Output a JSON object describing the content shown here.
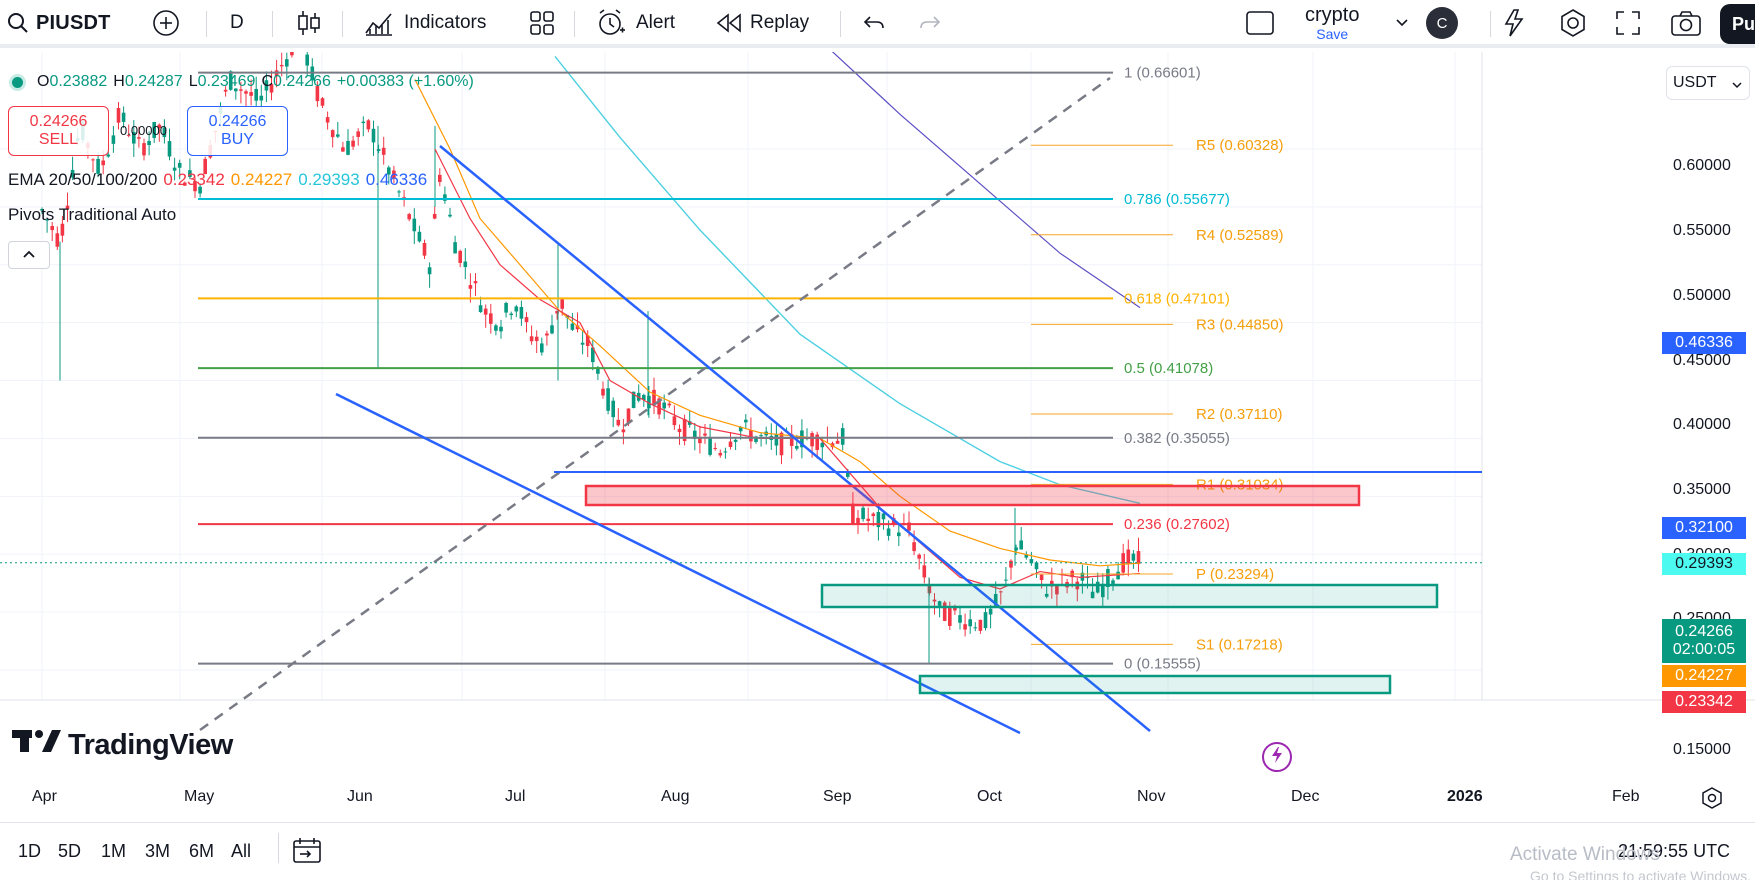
{
  "toolbar": {
    "symbol": "PIUSDT",
    "interval": "D",
    "indicators_label": "Indicators",
    "alert_label": "Alert",
    "replay_label": "Replay",
    "layout_name": "crypto",
    "save_label": "Save",
    "avatar_letter": "C",
    "publish_label": "Pu"
  },
  "legend": {
    "o_label": "O",
    "o_value": "0.23882",
    "h_label": "H",
    "h_value": "0.24287",
    "l_label": "L",
    "l_value": "0.23469",
    "c_label": "C",
    "c_value": "0.24266",
    "change": "+0.00383 (+1.60%)",
    "sell_price": "0.24266",
    "sell_label": "SELL",
    "buy_price": "0.24266",
    "buy_label": "BUY",
    "spread": "0.00000",
    "ema_label": "EMA 20/50/100/200",
    "ema20": "0.23342",
    "ema50": "0.24227",
    "ema100": "0.29393",
    "ema200": "0.46336",
    "pivots_label": "Pivots Traditional Auto"
  },
  "colors": {
    "up": "#089981",
    "down": "#f23645",
    "ema20": "#f23645",
    "ema50": "#ff9800",
    "ema100": "#4dd0e1",
    "ema200": "#5b4fc4",
    "accent": "#2962ff"
  },
  "price_axis": {
    "currency": "USDT",
    "ticks": [
      "0.60000",
      "0.55000",
      "0.50000",
      "0.45000",
      "0.40000",
      "0.35000",
      "0.30000",
      "0.25000",
      "0.15000"
    ],
    "tags": {
      "ema200": "0.46336",
      "line": "0.32100",
      "ema100": "0.29393",
      "last": "0.24266",
      "countdown": "02:00:05",
      "ema50": "0.24227",
      "ema20": "0.23342"
    }
  },
  "fib": [
    {
      "label": "1 (0.66601)",
      "price": 0.66601
    },
    {
      "label": "0.786 (0.55677)",
      "price": 0.55677
    },
    {
      "label": "0.618 (0.47101)",
      "price": 0.47101
    },
    {
      "label": "0.5 (0.41078)",
      "price": 0.41078
    },
    {
      "label": "0.382 (0.35055)",
      "price": 0.35055
    },
    {
      "label": "0.236 (0.27602)",
      "price": 0.27602
    },
    {
      "label": "0 (0.15555)",
      "price": 0.15555
    }
  ],
  "pivots": [
    {
      "label": "R5 (0.60328)",
      "price": 0.60328
    },
    {
      "label": "R4 (0.52589)",
      "price": 0.52589
    },
    {
      "label": "R3 (0.44850)",
      "price": 0.4485
    },
    {
      "label": "R2 (0.37110)",
      "price": 0.3711
    },
    {
      "label": "R1 (0.31034)",
      "price": 0.31034
    },
    {
      "label": "P (0.23294)",
      "price": 0.23294
    },
    {
      "label": "S1 (0.17218)",
      "price": 0.17218
    }
  ],
  "time_axis": [
    "Apr",
    "May",
    "Jun",
    "Jul",
    "Aug",
    "Sep",
    "Oct",
    "Nov",
    "Dec",
    "2026",
    "Feb"
  ],
  "bottom": {
    "ranges": [
      "1D",
      "5D",
      "1M",
      "3M",
      "6M",
      "All"
    ],
    "clock": "21:59:55 UTC",
    "watermark_line1": "Activate Windows",
    "watermark_line2": "Go to Settings to activate Windows."
  },
  "brand": "TradingView"
}
